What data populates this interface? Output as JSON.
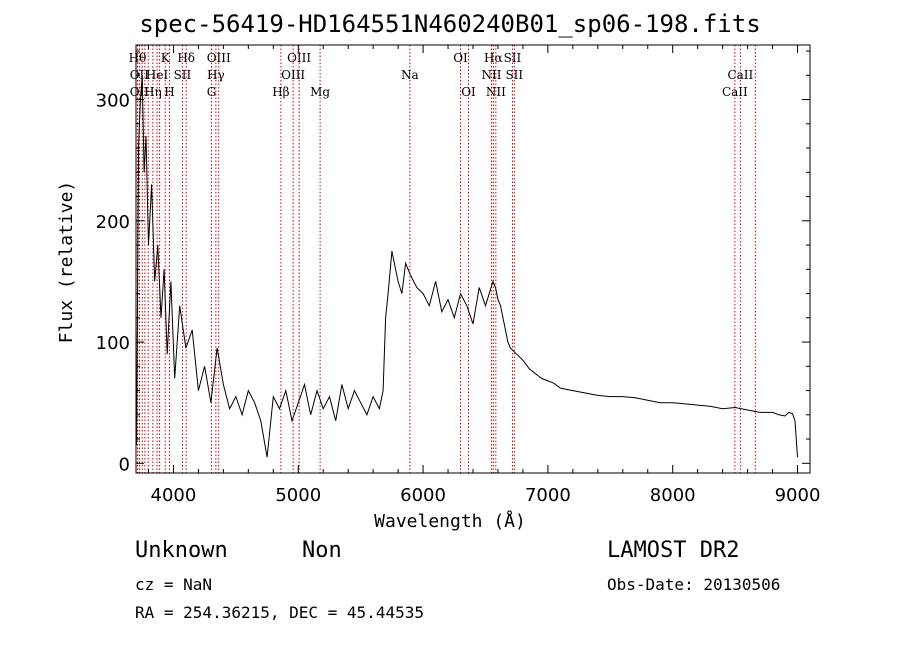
{
  "chart_data": {
    "type": "line",
    "title": "spec-56419-HD164551N460240B01_sp06-198.fits",
    "xlabel": "Wavelength (Å)",
    "ylabel": "Flux (relative)",
    "xlim": [
      3700,
      9100
    ],
    "ylim": [
      -8,
      345
    ],
    "x_ticks": [
      4000,
      5000,
      6000,
      7000,
      8000,
      9000
    ],
    "y_ticks": [
      0,
      100,
      200,
      300
    ],
    "series": [
      {
        "color": "#000000",
        "x": [
          3705,
          3720,
          3735,
          3750,
          3765,
          3780,
          3800,
          3825,
          3850,
          3875,
          3900,
          3925,
          3950,
          3980,
          4010,
          4050,
          4100,
          4150,
          4200,
          4250,
          4300,
          4350,
          4400,
          4450,
          4500,
          4550,
          4600,
          4650,
          4700,
          4750,
          4800,
          4850,
          4900,
          4950,
          5000,
          5050,
          5100,
          5150,
          5200,
          5250,
          5300,
          5350,
          5400,
          5450,
          5500,
          5550,
          5600,
          5650,
          5680,
          5700,
          5720,
          5750,
          5780,
          5800,
          5830,
          5860,
          5900,
          5950,
          6000,
          6050,
          6100,
          6150,
          6200,
          6250,
          6300,
          6350,
          6400,
          6450,
          6500,
          6530,
          6560,
          6580,
          6600,
          6620,
          6650,
          6680,
          6700,
          6750,
          6800,
          6850,
          6900,
          6950,
          7000,
          7050,
          7100,
          7200,
          7300,
          7400,
          7500,
          7600,
          7700,
          7800,
          7900,
          8000,
          8100,
          8200,
          8300,
          8400,
          8500,
          8600,
          8700,
          8800,
          8850,
          8900,
          8930,
          8960,
          8980,
          9000
        ],
        "y": [
          15,
          260,
          300,
          320,
          240,
          270,
          180,
          230,
          150,
          180,
          120,
          160,
          90,
          150,
          70,
          130,
          95,
          110,
          60,
          80,
          50,
          95,
          65,
          45,
          55,
          40,
          60,
          50,
          35,
          5,
          55,
          45,
          60,
          35,
          50,
          65,
          40,
          60,
          45,
          55,
          35,
          65,
          45,
          60,
          50,
          40,
          55,
          45,
          60,
          120,
          140,
          175,
          160,
          150,
          140,
          165,
          155,
          145,
          140,
          130,
          150,
          125,
          135,
          120,
          140,
          130,
          115,
          145,
          130,
          140,
          150,
          145,
          135,
          130,
          115,
          100,
          95,
          90,
          85,
          78,
          74,
          70,
          68,
          66,
          62,
          60,
          58,
          56,
          55,
          55,
          54,
          52,
          50,
          50,
          49,
          48,
          47,
          45,
          46,
          44,
          42,
          42,
          40,
          39,
          42,
          41,
          35,
          5
        ]
      }
    ],
    "lines": [
      {
        "wavelength": 3712,
        "label": "Hθ",
        "row": 1
      },
      {
        "wavelength": 3727,
        "label": "OII",
        "row": 2
      },
      {
        "wavelength": 3727,
        "label": "OII",
        "row": 3
      },
      {
        "wavelength": 3750,
        "label": "",
        "row": 0
      },
      {
        "wavelength": 3771,
        "label": "",
        "row": 0
      },
      {
        "wavelength": 3798,
        "label": "",
        "row": 0
      },
      {
        "wavelength": 3835,
        "label": "Hη",
        "row": 3
      },
      {
        "wavelength": 3869,
        "label": "HeI",
        "row": 2
      },
      {
        "wavelength": 3889,
        "label": "",
        "row": 0
      },
      {
        "wavelength": 3934,
        "label": "K",
        "row": 1
      },
      {
        "wavelength": 3968,
        "label": "H",
        "row": 3
      },
      {
        "wavelength": 4072,
        "label": "SII",
        "row": 2
      },
      {
        "wavelength": 4102,
        "label": "Hδ",
        "row": 1
      },
      {
        "wavelength": 4305,
        "label": "G",
        "row": 3
      },
      {
        "wavelength": 4340,
        "label": "Hγ",
        "row": 2
      },
      {
        "wavelength": 4363,
        "label": "OIII",
        "row": 1
      },
      {
        "wavelength": 4861,
        "label": "Hβ",
        "row": 3
      },
      {
        "wavelength": 4959,
        "label": "OIII",
        "row": 2
      },
      {
        "wavelength": 5007,
        "label": "OIII",
        "row": 1
      },
      {
        "wavelength": 5175,
        "label": "Mg",
        "row": 3
      },
      {
        "wavelength": 5894,
        "label": "Na",
        "row": 2
      },
      {
        "wavelength": 6300,
        "label": "OI",
        "row": 1
      },
      {
        "wavelength": 6364,
        "label": "OI",
        "row": 3
      },
      {
        "wavelength": 6548,
        "label": "NII",
        "row": 2
      },
      {
        "wavelength": 6563,
        "label": "Hα",
        "row": 1
      },
      {
        "wavelength": 6583,
        "label": "NII",
        "row": 3
      },
      {
        "wavelength": 6716,
        "label": "SII",
        "row": 1
      },
      {
        "wavelength": 6731,
        "label": "SII",
        "row": 2
      },
      {
        "wavelength": 8498,
        "label": "CaII",
        "row": 3
      },
      {
        "wavelength": 8542,
        "label": "CaII",
        "row": 2
      },
      {
        "wavelength": 8662,
        "label": "",
        "row": 0
      }
    ]
  },
  "info": {
    "class": "Unknown",
    "subclass": "Non",
    "survey": "LAMOST DR2",
    "cz": "cz = NaN",
    "obs_date": "Obs-Date: 20130506",
    "radec": "RA = 254.36215, DEC =  45.44535"
  },
  "colors": {
    "spectrum": "#000000",
    "line_markers": "#cc0000",
    "axes": "#000000",
    "background": "#ffffff"
  }
}
